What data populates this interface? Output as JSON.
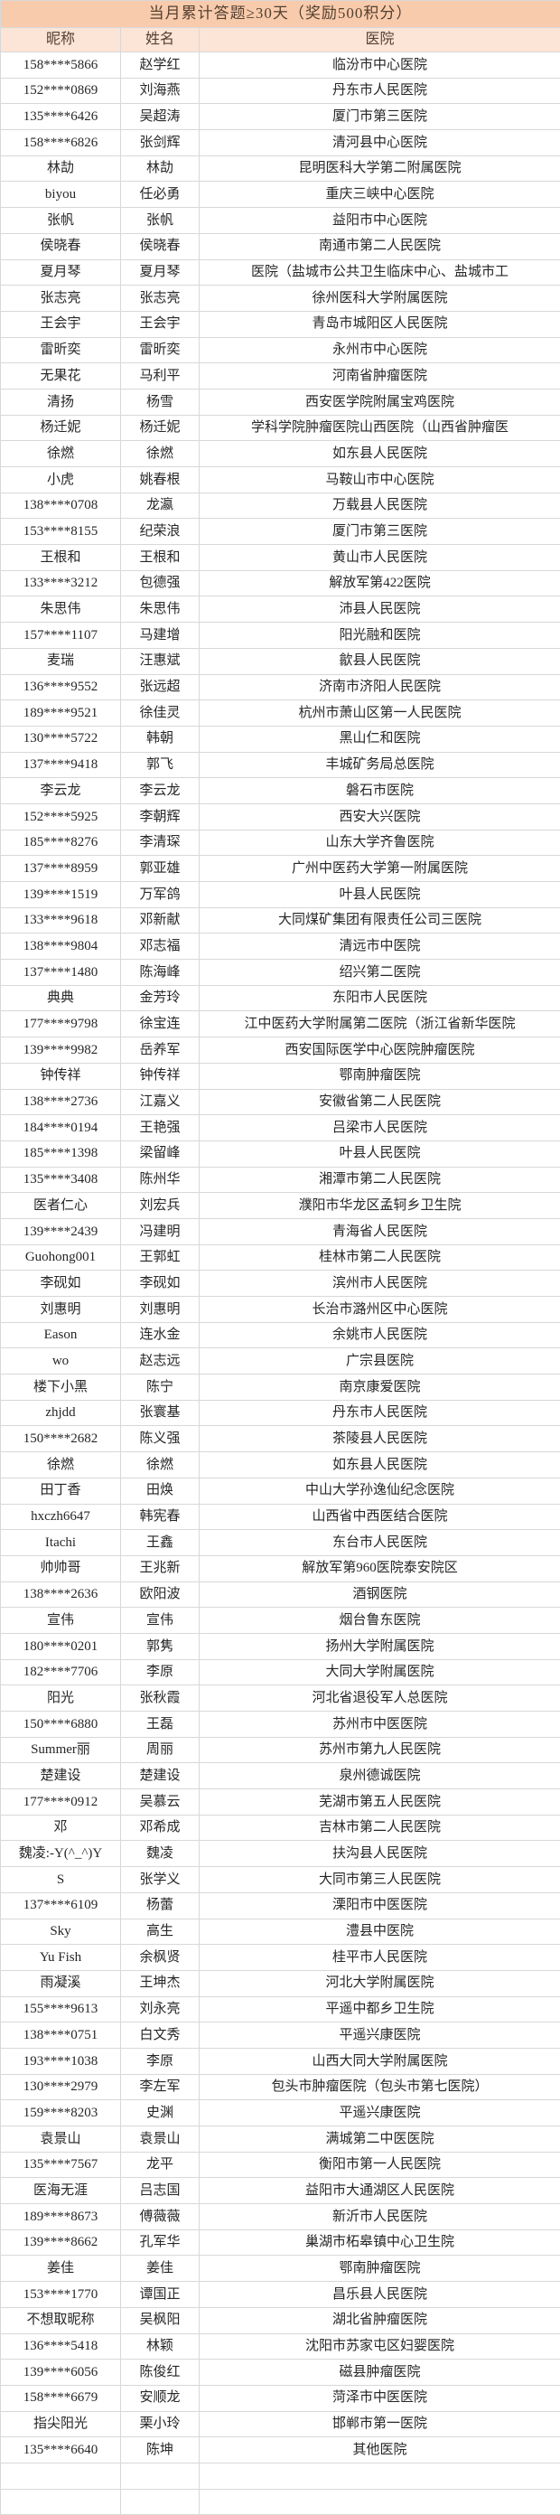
{
  "table": {
    "title": "当月累计答题≥30天（奖励500积分）",
    "columns": [
      "昵称",
      "姓名",
      "医院"
    ],
    "rows": [
      [
        "158****5866",
        "赵学红",
        "临汾市中心医院"
      ],
      [
        "152****0869",
        "刘海燕",
        "丹东市人民医院"
      ],
      [
        "135****6426",
        "吴超涛",
        "厦门市第三医院"
      ],
      [
        "158****6826",
        "张剑辉",
        "清河县中心医院"
      ],
      [
        "林劼",
        "林劼",
        "昆明医科大学第二附属医院"
      ],
      [
        "biyou",
        "任必勇",
        "重庆三峡中心医院"
      ],
      [
        "张帆",
        "张帆",
        "益阳市中心医院"
      ],
      [
        "侯晓春",
        "侯晓春",
        "南通市第二人民医院"
      ],
      [
        "夏月琴",
        "夏月琴",
        "医院（盐城市公共卫生临床中心、盐城市工"
      ],
      [
        "张志亮",
        "张志亮",
        "徐州医科大学附属医院"
      ],
      [
        "王会宇",
        "王会宇",
        "青岛市城阳区人民医院"
      ],
      [
        "雷昕奕",
        "雷昕奕",
        "永州市中心医院"
      ],
      [
        "无果花",
        "马利平",
        "河南省肿瘤医院"
      ],
      [
        "清扬",
        "杨雪",
        "西安医学院附属宝鸡医院"
      ],
      [
        "杨迁妮",
        "杨迁妮",
        "学科学院肿瘤医院山西医院（山西省肿瘤医"
      ],
      [
        "徐燃",
        "徐燃",
        "如东县人民医院"
      ],
      [
        "小虎",
        "姚春根",
        "马鞍山市中心医院"
      ],
      [
        "138****0708",
        "龙瀛",
        "万载县人民医院"
      ],
      [
        "153****8155",
        "纪荣浪",
        "厦门市第三医院"
      ],
      [
        "王根和",
        "王根和",
        "黄山市人民医院"
      ],
      [
        "133****3212",
        "包德强",
        "解放军第422医院"
      ],
      [
        "朱思伟",
        "朱思伟",
        "沛县人民医院"
      ],
      [
        "157****1107",
        "马建增",
        "阳光融和医院"
      ],
      [
        "麦瑞",
        "汪惠斌",
        "歙县人民医院"
      ],
      [
        "136****9552",
        "张远超",
        "济南市济阳人民医院"
      ],
      [
        "189****9521",
        "徐佳灵",
        "杭州市萧山区第一人民医院"
      ],
      [
        "130****5722",
        "韩朝",
        "黑山仁和医院"
      ],
      [
        "137****9418",
        "郭飞",
        "丰城矿务局总医院"
      ],
      [
        "李云龙",
        "李云龙",
        "磐石市医院"
      ],
      [
        "152****5925",
        "李朝辉",
        "西安大兴医院"
      ],
      [
        "185****8276",
        "李清琛",
        "山东大学齐鲁医院"
      ],
      [
        "137****8959",
        "郭亚雄",
        "广州中医药大学第一附属医院"
      ],
      [
        "139****1519",
        "万军鸽",
        "叶县人民医院"
      ],
      [
        "133****9618",
        "邓新献",
        "大同煤矿集团有限责任公司三医院"
      ],
      [
        "138****9804",
        "邓志福",
        "清远市中医院"
      ],
      [
        "137****1480",
        "陈海峰",
        "绍兴第二医院"
      ],
      [
        "典典",
        "金芳玲",
        "东阳市人民医院"
      ],
      [
        "177****9798",
        "徐宝连",
        "江中医药大学附属第二医院（浙江省新华医院"
      ],
      [
        "139****9982",
        "岳养军",
        "西安国际医学中心医院肿瘤医院"
      ],
      [
        "钟传祥",
        "钟传祥",
        "鄂南肿瘤医院"
      ],
      [
        "138****2736",
        "江嘉义",
        "安徽省第二人民医院"
      ],
      [
        "184****0194",
        "王艳强",
        "吕梁市人民医院"
      ],
      [
        "185****1398",
        "梁留峰",
        "叶县人民医院"
      ],
      [
        "135****3408",
        "陈州华",
        "湘潭市第二人民医院"
      ],
      [
        "医者仁心",
        "刘宏兵",
        "濮阳市华龙区孟轲乡卫生院"
      ],
      [
        "139****2439",
        "冯建明",
        "青海省人民医院"
      ],
      [
        "Guohong001",
        "王郭虹",
        "桂林市第二人民医院"
      ],
      [
        "李砚如",
        "李砚如",
        "滨州市人民医院"
      ],
      [
        "刘惠明",
        "刘惠明",
        "长治市潞州区中心医院"
      ],
      [
        "Eason",
        "连水金",
        "余姚市人民医院"
      ],
      [
        "wo",
        "赵志远",
        "广宗县医院"
      ],
      [
        "楼下小黑",
        "陈宁",
        "南京康爱医院"
      ],
      [
        "zhjdd",
        "张寰基",
        "丹东市人民医院"
      ],
      [
        "150****2682",
        "陈义强",
        "茶陵县人民医院"
      ],
      [
        "徐燃",
        "徐燃",
        "如东县人民医院"
      ],
      [
        "田丁香",
        "田焕",
        "中山大学孙逸仙纪念医院"
      ],
      [
        "hxczh6647",
        "韩宪春",
        "山西省中西医结合医院"
      ],
      [
        "Itachi",
        "王鑫",
        "东台市人民医院"
      ],
      [
        "帅帅哥",
        "王兆新",
        "解放军第960医院泰安院区"
      ],
      [
        "138****2636",
        "欧阳波",
        "酒钢医院"
      ],
      [
        "宣伟",
        "宣伟",
        "烟台鲁东医院"
      ],
      [
        "180****0201",
        "郭隽",
        "扬州大学附属医院"
      ],
      [
        "182****7706",
        "李原",
        "大同大学附属医院"
      ],
      [
        "阳光",
        "张秋霞",
        "河北省退役军人总医院"
      ],
      [
        "150****6880",
        "王磊",
        "苏州市中医医院"
      ],
      [
        "Summer丽",
        "周丽",
        "苏州市第九人民医院"
      ],
      [
        "楚建设",
        "楚建设",
        "泉州德诚医院"
      ],
      [
        "177****0912",
        "吴慕云",
        "芜湖市第五人民医院"
      ],
      [
        "邓",
        "邓希成",
        "吉林市第二人民医院"
      ],
      [
        "魏凌:-Y(^_^)Y",
        "魏凌",
        "扶沟县人民医院"
      ],
      [
        "S",
        "张学义",
        "大同市第三人民医院"
      ],
      [
        "137****6109",
        "杨蕾",
        "溧阳市中医医院"
      ],
      [
        "Sky",
        "高生",
        "澧县中医院"
      ],
      [
        "Yu Fish",
        "余枫贤",
        "桂平市人民医院"
      ],
      [
        "雨凝溪",
        "王坤杰",
        "河北大学附属医院"
      ],
      [
        "155****9613",
        "刘永亮",
        "平遥中都乡卫生院"
      ],
      [
        "138****0751",
        "白文秀",
        "平遥兴康医院"
      ],
      [
        "193****1038",
        "李原",
        "山西大同大学附属医院"
      ],
      [
        "130****2979",
        "李左军",
        "包头市肿瘤医院（包头市第七医院）"
      ],
      [
        "159****8203",
        "史渊",
        "平遥兴康医院"
      ],
      [
        "袁景山",
        "袁景山",
        "满城第二中医医院"
      ],
      [
        "135****7567",
        "龙平",
        "衡阳市第一人民医院"
      ],
      [
        "医海无涯",
        "吕志国",
        "益阳市大通湖区人民医院"
      ],
      [
        "189****8673",
        "傅薇薇",
        "新沂市人民医院"
      ],
      [
        "139****8662",
        "孔军华",
        "巢湖市柘皋镇中心卫生院"
      ],
      [
        "姜佳",
        "姜佳",
        "鄂南肿瘤医院"
      ],
      [
        "153****1770",
        "谭国正",
        "昌乐县人民医院"
      ],
      [
        "不想取昵称",
        "吴枫阳",
        "湖北省肿瘤医院"
      ],
      [
        "136****5418",
        "林颖",
        "沈阳市苏家屯区妇婴医院"
      ],
      [
        "139****6056",
        "陈俊红",
        "磁县肿瘤医院"
      ],
      [
        "158****6679",
        "安顺龙",
        "菏泽市中医医院"
      ],
      [
        "指尖阳光",
        "栗小玲",
        "邯郸市第一医院"
      ],
      [
        "135****6640",
        "陈坤",
        "其他医院"
      ],
      [
        "",
        "",
        ""
      ],
      [
        "",
        "",
        ""
      ]
    ]
  },
  "colors": {
    "title_background": "#f8cbad",
    "header_background": "#fce4d6",
    "grid_border": "#d8d8d8",
    "header_text": "#55402f",
    "body_text": "#262626"
  }
}
